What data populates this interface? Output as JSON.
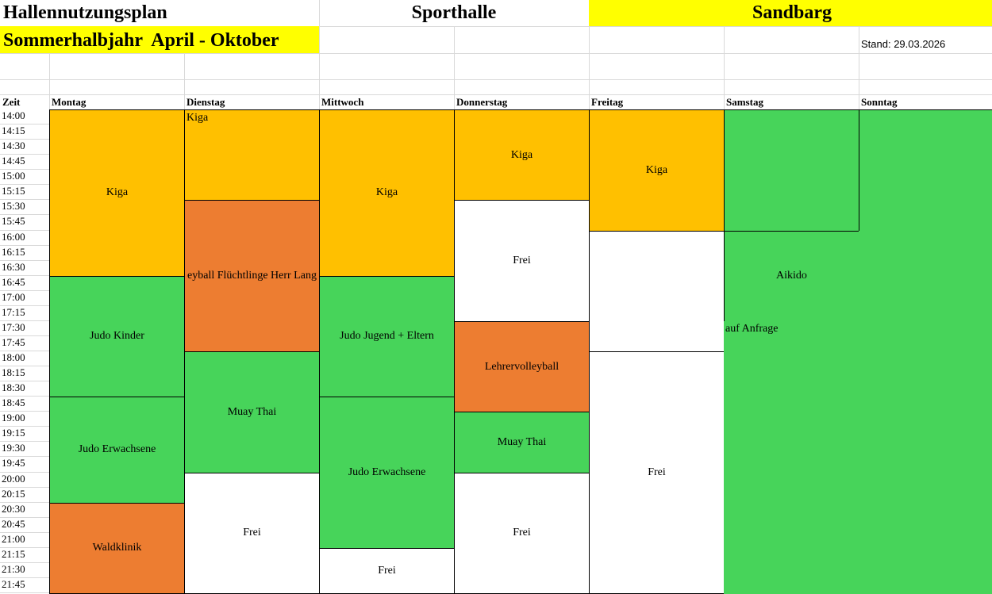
{
  "title": "Hallennutzungsplan",
  "hall": "Sporthalle",
  "location": "Sandbarg",
  "season": "Sommerhalbjahr  April - Oktober",
  "stand": "Stand: 29.03.2026",
  "time_header": "Zeit",
  "days": [
    "Montag",
    "Dienstag",
    "Mittwoch",
    "Donnerstag",
    "Freitag",
    "Samstag",
    "Sonntag"
  ],
  "times": [
    "14:00",
    "14:15",
    "14:30",
    "14:45",
    "15:00",
    "15:15",
    "15:30",
    "15:45",
    "16:00",
    "16:15",
    "16:30",
    "16:45",
    "17:00",
    "17:15",
    "17:30",
    "17:45",
    "18:00",
    "18:15",
    "18:30",
    "18:45",
    "19:00",
    "19:15",
    "19:30",
    "19:45",
    "20:00",
    "20:15",
    "20:30",
    "20:45",
    "21:00",
    "21:15",
    "21:30",
    "21:45"
  ],
  "colors": {
    "kiga": "#FFC000",
    "sport": "#47D45A",
    "orange": "#ED7D31",
    "free": "#FFFFFF",
    "highlight": "#FFFF00"
  },
  "blocks": [
    {
      "day": 0,
      "start": "14:00",
      "end": "16:45",
      "label": "Kiga",
      "color": "kiga"
    },
    {
      "day": 0,
      "start": "16:45",
      "end": "18:45",
      "label": "Judo Kinder",
      "color": "sport"
    },
    {
      "day": 0,
      "start": "18:45",
      "end": "20:30",
      "label": "Judo Erwachsene",
      "color": "sport"
    },
    {
      "day": 0,
      "start": "20:30",
      "end": "22:00",
      "label": "Waldklinik",
      "color": "orange"
    },
    {
      "day": 1,
      "start": "14:00",
      "end": "15:30",
      "label": "Kiga",
      "color": "kiga",
      "align": "top-left"
    },
    {
      "day": 1,
      "start": "15:30",
      "end": "18:00",
      "label": "eyball Flüchtlinge Herr Lang",
      "color": "orange"
    },
    {
      "day": 1,
      "start": "18:00",
      "end": "20:00",
      "label": "Muay Thai",
      "color": "sport"
    },
    {
      "day": 1,
      "start": "20:00",
      "end": "22:00",
      "label": "Frei",
      "color": "free"
    },
    {
      "day": 2,
      "start": "14:00",
      "end": "16:45",
      "label": "Kiga",
      "color": "kiga"
    },
    {
      "day": 2,
      "start": "16:45",
      "end": "18:45",
      "label": "Judo Jugend + Eltern",
      "color": "sport"
    },
    {
      "day": 2,
      "start": "18:45",
      "end": "21:15",
      "label": "Judo Erwachsene",
      "color": "sport"
    },
    {
      "day": 2,
      "start": "21:15",
      "end": "22:00",
      "label": "Frei",
      "color": "free"
    },
    {
      "day": 3,
      "start": "14:00",
      "end": "15:30",
      "label": "Kiga",
      "color": "kiga"
    },
    {
      "day": 3,
      "start": "15:30",
      "end": "17:30",
      "label": "Frei",
      "color": "free"
    },
    {
      "day": 3,
      "start": "17:30",
      "end": "19:00",
      "label": "Lehrervolleyball",
      "color": "orange"
    },
    {
      "day": 3,
      "start": "19:00",
      "end": "20:00",
      "label": "Muay Thai",
      "color": "sport"
    },
    {
      "day": 3,
      "start": "20:00",
      "end": "22:00",
      "label": "Frei",
      "color": "free"
    },
    {
      "day": 4,
      "start": "14:00",
      "end": "16:00",
      "label": "Kiga",
      "color": "kiga"
    },
    {
      "day": 4,
      "start": "16:00",
      "end": "18:00",
      "label": "",
      "color": "free"
    },
    {
      "day": 4,
      "start": "18:00",
      "end": "22:00",
      "label": "Frei",
      "color": "free"
    },
    {
      "day": 5,
      "start": "14:00",
      "end": "16:00",
      "label": "",
      "color": "sport"
    },
    {
      "day": 5,
      "start": "16:00",
      "end": "17:30",
      "label": "Aikido",
      "color": "sport"
    },
    {
      "day": 6,
      "start": "14:00",
      "end": "16:00",
      "label": "",
      "color": "sport"
    },
    {
      "day": 5,
      "span": 2,
      "start": "17:30",
      "end": "22:00",
      "label": "auf Anfrage",
      "color": "sport",
      "align": "top-left",
      "noborder": true
    },
    {
      "day": 6,
      "start": "16:00",
      "end": "17:30",
      "label": "",
      "color": "sport",
      "noborder": true
    }
  ]
}
